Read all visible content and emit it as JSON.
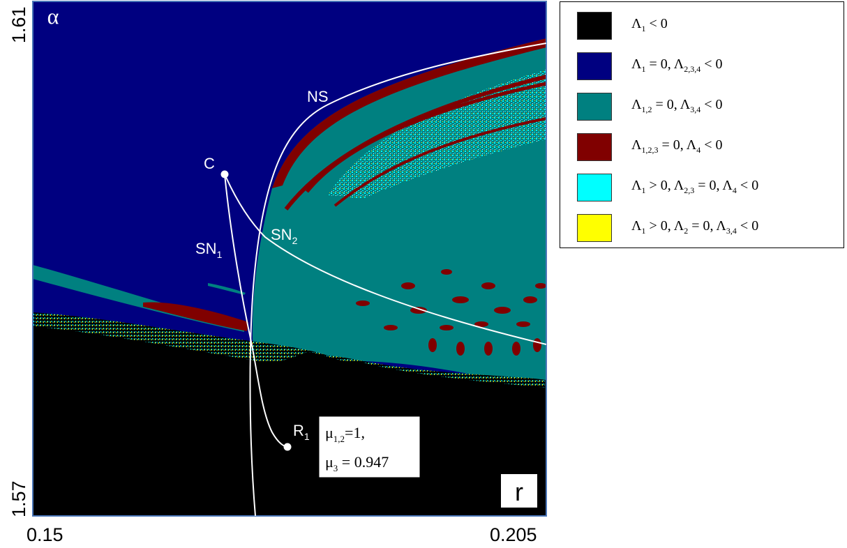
{
  "chart_data": {
    "type": "heatmap",
    "xlabel": "r",
    "ylabel": "α",
    "xlim": [
      0.15,
      0.205
    ],
    "ylim": [
      1.57,
      1.61
    ],
    "x_ticks": [
      "0.15",
      "0.205"
    ],
    "y_ticks": [
      "1.57",
      "1.61"
    ],
    "curves": [
      {
        "name": "NS",
        "points": [
          [
            0.1748,
            1.57
          ],
          [
            0.1753,
            1.5775
          ],
          [
            0.1765,
            1.5865
          ],
          [
            0.1775,
            1.5915
          ],
          [
            0.18,
            1.5965
          ],
          [
            0.185,
            1.6005
          ],
          [
            0.192,
            1.6035
          ],
          [
            0.2,
            1.6057
          ],
          [
            0.205,
            1.6068
          ]
        ]
      },
      {
        "name": "SN₂",
        "points": [
          [
            0.1706,
            1.5985
          ],
          [
            0.172,
            1.595
          ],
          [
            0.175,
            1.5905
          ],
          [
            0.18,
            1.5865
          ],
          [
            0.19,
            1.5825
          ],
          [
            0.2,
            1.5797
          ],
          [
            0.205,
            1.5787
          ]
        ]
      },
      {
        "name": "SN₁",
        "points": [
          [
            0.1706,
            1.5985
          ],
          [
            0.1712,
            1.592
          ],
          [
            0.1722,
            1.5845
          ],
          [
            0.1735,
            1.578
          ],
          [
            0.1745,
            1.5745
          ],
          [
            0.1752,
            1.5725
          ],
          [
            0.1775,
            1.5707
          ]
        ]
      }
    ],
    "points": [
      {
        "name": "C",
        "x": 0.1706,
        "y": 1.5985
      },
      {
        "name": "R₁",
        "x": 0.1775,
        "y": 1.5707
      }
    ],
    "annotation": {
      "line1": "μ1,2 =1,",
      "line2": "μ3 = 0.947"
    },
    "regions": [
      {
        "color": "#000000",
        "label": "Λ1 < 0"
      },
      {
        "color": "#000080",
        "label": "Λ1 = 0, Λ2,3,4 < 0"
      },
      {
        "color": "#008080",
        "label": "Λ1,2 = 0, Λ3,4 < 0"
      },
      {
        "color": "#800000",
        "label": "Λ1,2,3 = 0, Λ4 < 0"
      },
      {
        "color": "#00ffff",
        "label": "Λ1 > 0, Λ2,3 = 0, Λ4 < 0"
      },
      {
        "color": "#ffff00",
        "label": "Λ1 > 0, Λ2 = 0, Λ3,4 < 0"
      }
    ]
  },
  "labels": {
    "x_min": "0.15",
    "x_max": "0.205",
    "y_min": "1.57",
    "y_max": "1.61",
    "xlabel": "r",
    "ylabel": "α",
    "ns": "NS",
    "sn1": "SN",
    "sn1_sub": "1",
    "sn2": "SN",
    "sn2_sub": "2",
    "c": "C",
    "r1": "R",
    "r1_sub": "1",
    "ann_mu12": "μ",
    "ann_mu12_sub": "1,2",
    "ann_mu12_rest": "=1,",
    "ann_mu3": "μ",
    "ann_mu3_sub": "3",
    "ann_mu3_rest": " = 0.947"
  },
  "legend": [
    {
      "parts": [
        [
          "Λ",
          "1",
          " < 0"
        ]
      ],
      "color": "#000000"
    },
    {
      "parts": [
        [
          "Λ",
          "1",
          " = 0, "
        ],
        [
          "Λ",
          "2,3,4",
          " < 0"
        ]
      ],
      "color": "#000080"
    },
    {
      "parts": [
        [
          "Λ",
          "1,2",
          " = 0, "
        ],
        [
          "Λ",
          "3,4",
          " < 0"
        ]
      ],
      "color": "#008080"
    },
    {
      "parts": [
        [
          "Λ",
          "1,2,3",
          " = 0, "
        ],
        [
          "Λ",
          "4",
          " < 0"
        ]
      ],
      "color": "#800000"
    },
    {
      "parts": [
        [
          "Λ",
          "1",
          " > 0, "
        ],
        [
          "Λ",
          "2,3",
          " = 0, "
        ],
        [
          "Λ",
          "4",
          " < 0"
        ]
      ],
      "color": "#00ffff"
    },
    {
      "parts": [
        [
          "Λ",
          "1",
          " > 0, "
        ],
        [
          "Λ",
          "2",
          " = 0, "
        ],
        [
          "Λ",
          "3,4",
          " < 0"
        ]
      ],
      "color": "#ffff00"
    }
  ]
}
